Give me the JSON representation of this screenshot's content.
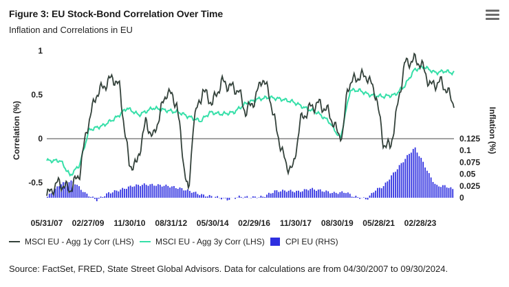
{
  "header": {
    "title": "Figure 3: EU Stock-Bond Correlation Over Time",
    "subtitle": "Inflation and Correlations in EU",
    "menu_icon": "hamburger-menu-icon"
  },
  "source": "Source: FactSet, FRED, State Street Global Advisors. Data for calculations are from 04/30/2007 to 09/30/2024.",
  "colors": {
    "corr1y": "#33413a",
    "corr3y": "#35dfa8",
    "cpi": "#2e2fe0",
    "zero_line": "#444444"
  },
  "chart_data": {
    "type": "bar+line",
    "x_tick_labels": [
      "05/31/07",
      "02/27/09",
      "11/30/10",
      "08/31/12",
      "05/30/14",
      "02/29/16",
      "11/30/17",
      "08/30/19",
      "05/28/21",
      "02/28/23"
    ],
    "y_left": {
      "label": "Correlation (%)",
      "ticks": [
        "1",
        "0.5",
        "0",
        "-0.5"
      ],
      "range": [
        -0.7,
        1
      ]
    },
    "y_right": {
      "label": "Inflation (%)",
      "ticks": [
        "0.125",
        "0.1",
        "0.075",
        "0.05",
        "0.025",
        "0"
      ],
      "range": [
        0,
        0.125
      ]
    },
    "legend": [
      "MSCI EU - Agg 1y Corr (LHS)",
      "MSCI EU - Agg 3y Corr (LHS)",
      "CPI EU (RHS)"
    ],
    "series_1y_corr_keypoints": [
      [
        2007.42,
        -0.65
      ],
      [
        2007.9,
        -0.5
      ],
      [
        2008.4,
        -0.58
      ],
      [
        2008.8,
        -0.4
      ],
      [
        2009.1,
        0.1
      ],
      [
        2009.5,
        0.5
      ],
      [
        2009.9,
        0.62
      ],
      [
        2010.2,
        0.7
      ],
      [
        2010.5,
        0.58
      ],
      [
        2010.7,
        0.1
      ],
      [
        2010.9,
        -0.3
      ],
      [
        2011.2,
        -0.3
      ],
      [
        2011.6,
        0.2
      ],
      [
        2011.9,
        0.0
      ],
      [
        2012.2,
        0.3
      ],
      [
        2012.5,
        0.55
      ],
      [
        2012.9,
        0.4
      ],
      [
        2013.2,
        -0.3
      ],
      [
        2013.4,
        -0.65
      ],
      [
        2013.6,
        0.2
      ],
      [
        2014.0,
        0.55
      ],
      [
        2014.4,
        0.4
      ],
      [
        2014.8,
        0.65
      ],
      [
        2015.1,
        0.6
      ],
      [
        2015.5,
        0.55
      ],
      [
        2015.8,
        0.3
      ],
      [
        2016.2,
        0.45
      ],
      [
        2016.5,
        0.7
      ],
      [
        2016.8,
        0.5
      ],
      [
        2017.1,
        0.1
      ],
      [
        2017.5,
        -0.3
      ],
      [
        2017.8,
        -0.35
      ],
      [
        2018.1,
        0.2
      ],
      [
        2018.5,
        0.35
      ],
      [
        2018.9,
        0.4
      ],
      [
        2019.3,
        0.3
      ],
      [
        2019.7,
        0.05
      ],
      [
        2019.9,
        0.05
      ],
      [
        2020.1,
        0.6
      ],
      [
        2020.5,
        0.7
      ],
      [
        2020.9,
        0.72
      ],
      [
        2021.3,
        0.5
      ],
      [
        2021.6,
        -0.05
      ],
      [
        2021.9,
        -0.1
      ],
      [
        2022.1,
        0.2
      ],
      [
        2022.5,
        0.85
      ],
      [
        2022.9,
        0.9
      ],
      [
        2023.2,
        0.85
      ],
      [
        2023.6,
        0.6
      ],
      [
        2024.0,
        0.65
      ],
      [
        2024.3,
        0.55
      ],
      [
        2024.5,
        0.42
      ]
    ],
    "series_3y_corr_keypoints": [
      [
        2007.42,
        -0.25
      ],
      [
        2008.0,
        -0.25
      ],
      [
        2008.4,
        -0.42
      ],
      [
        2008.8,
        -0.3
      ],
      [
        2009.2,
        0.1
      ],
      [
        2009.8,
        0.15
      ],
      [
        2010.4,
        0.25
      ],
      [
        2010.8,
        0.35
      ],
      [
        2011.3,
        0.27
      ],
      [
        2011.9,
        0.35
      ],
      [
        2012.5,
        0.32
      ],
      [
        2013.0,
        0.3
      ],
      [
        2013.4,
        0.25
      ],
      [
        2013.9,
        0.2
      ],
      [
        2014.3,
        0.3
      ],
      [
        2014.8,
        0.28
      ],
      [
        2015.3,
        0.3
      ],
      [
        2015.8,
        0.4
      ],
      [
        2016.3,
        0.45
      ],
      [
        2016.8,
        0.47
      ],
      [
        2017.3,
        0.45
      ],
      [
        2017.8,
        0.42
      ],
      [
        2018.3,
        0.35
      ],
      [
        2018.8,
        0.3
      ],
      [
        2019.3,
        0.2
      ],
      [
        2019.8,
        0.0
      ],
      [
        2020.2,
        0.55
      ],
      [
        2020.6,
        0.55
      ],
      [
        2021.0,
        0.5
      ],
      [
        2021.6,
        0.48
      ],
      [
        2022.1,
        0.5
      ],
      [
        2022.5,
        0.6
      ],
      [
        2022.9,
        0.78
      ],
      [
        2023.3,
        0.82
      ],
      [
        2023.8,
        0.75
      ],
      [
        2024.2,
        0.77
      ],
      [
        2024.5,
        0.75
      ]
    ],
    "series_cpi_keypoints": [
      [
        2007.42,
        0.002
      ],
      [
        2008.0,
        0.03
      ],
      [
        2008.5,
        0.035
      ],
      [
        2009.0,
        0.01
      ],
      [
        2009.5,
        -0.005
      ],
      [
        2010.0,
        0.01
      ],
      [
        2010.5,
        0.017
      ],
      [
        2011.0,
        0.025
      ],
      [
        2011.5,
        0.028
      ],
      [
        2012.0,
        0.027
      ],
      [
        2012.5,
        0.025
      ],
      [
        2013.0,
        0.02
      ],
      [
        2013.5,
        0.013
      ],
      [
        2014.0,
        0.005
      ],
      [
        2014.5,
        0.002
      ],
      [
        2015.0,
        -0.004
      ],
      [
        2015.5,
        0.002
      ],
      [
        2016.0,
        0.001
      ],
      [
        2016.5,
        0.002
      ],
      [
        2017.0,
        0.014
      ],
      [
        2017.5,
        0.015
      ],
      [
        2018.0,
        0.013
      ],
      [
        2018.5,
        0.019
      ],
      [
        2019.0,
        0.015
      ],
      [
        2019.5,
        0.01
      ],
      [
        2020.0,
        0.012
      ],
      [
        2020.3,
        0.003
      ],
      [
        2020.9,
        -0.003
      ],
      [
        2021.2,
        0.015
      ],
      [
        2021.6,
        0.025
      ],
      [
        2021.9,
        0.045
      ],
      [
        2022.3,
        0.07
      ],
      [
        2022.7,
        0.095
      ],
      [
        2022.9,
        0.106
      ],
      [
        2023.2,
        0.08
      ],
      [
        2023.5,
        0.05
      ],
      [
        2023.8,
        0.025
      ],
      [
        2024.2,
        0.025
      ],
      [
        2024.5,
        0.018
      ]
    ]
  }
}
